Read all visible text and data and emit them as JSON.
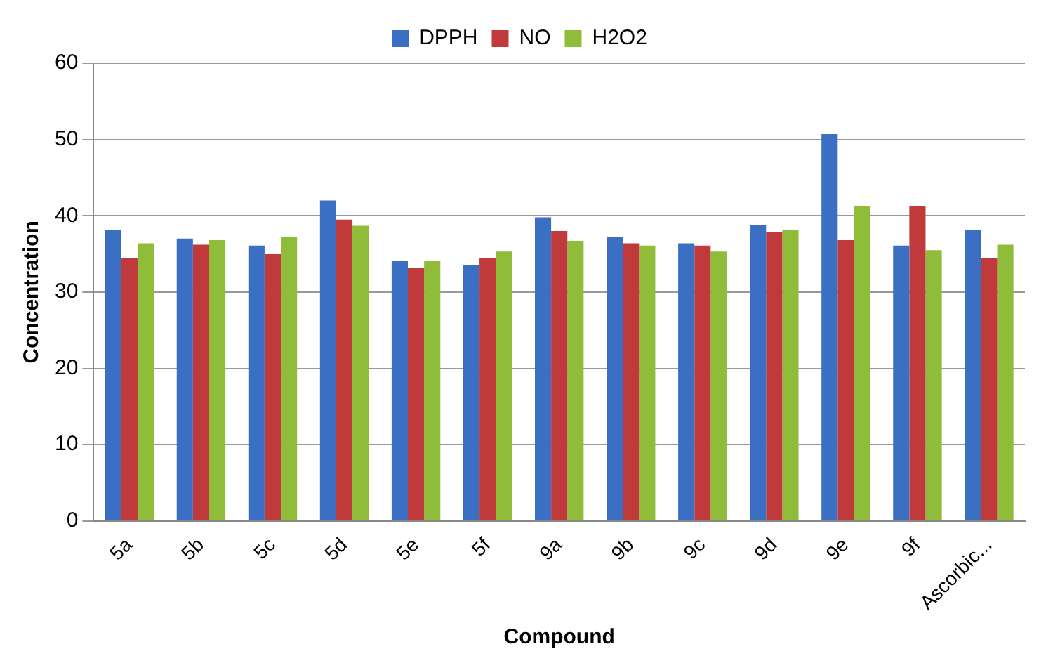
{
  "chart_data": {
    "type": "bar",
    "xlabel": "Compound",
    "ylabel": "Concentration",
    "categories": [
      "5a",
      "5b",
      "5c",
      "5d",
      "5e",
      "5f",
      "9a",
      "9b",
      "9c",
      "9d",
      "9e",
      "9f",
      "Ascorbic..."
    ],
    "series": [
      {
        "name": "DPPH",
        "color": "#3a6fc4",
        "values": [
          38.1,
          37.0,
          36.1,
          42.0,
          34.1,
          33.5,
          39.8,
          37.2,
          36.4,
          38.8,
          50.7,
          36.1,
          38.1
        ]
      },
      {
        "name": "NO",
        "color": "#c0393b",
        "values": [
          34.4,
          36.2,
          35.0,
          39.5,
          33.2,
          34.4,
          38.0,
          36.4,
          36.1,
          37.9,
          36.8,
          41.3,
          34.5
        ]
      },
      {
        "name": "H2O2",
        "color": "#8fbd3a",
        "values": [
          36.4,
          36.8,
          37.2,
          38.7,
          34.1,
          35.3,
          36.7,
          36.1,
          35.3,
          38.1,
          41.3,
          35.5,
          36.2
        ]
      }
    ],
    "ylim": [
      0,
      60
    ],
    "yticks": [
      0,
      10,
      20,
      30,
      40,
      50,
      60
    ],
    "grid": "y",
    "legend": "top"
  }
}
